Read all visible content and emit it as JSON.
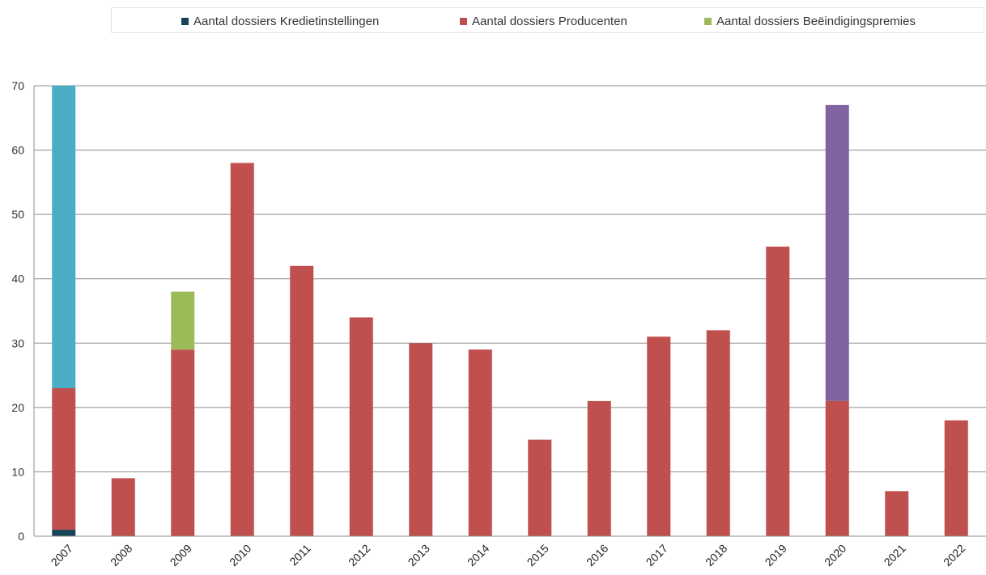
{
  "chart_data": {
    "type": "bar",
    "stacked": true,
    "categories": [
      "2007",
      "2008",
      "2009",
      "2010",
      "2011",
      "2012",
      "2013",
      "2014",
      "2015",
      "2016",
      "2017",
      "2018",
      "2019",
      "2020",
      "2021",
      "2022"
    ],
    "ylim": [
      0,
      70
    ],
    "yticks": [
      0,
      10,
      20,
      30,
      40,
      50,
      60,
      70
    ],
    "grid": true,
    "legend_position": "top",
    "legend": [
      {
        "label": "Aantal dossiers Kredietinstellingen",
        "color": "#17435a"
      },
      {
        "label": "Aantal dossiers Producenten",
        "color": "#c0504d"
      },
      {
        "label": "Aantal dossiers Beëindigingspremies",
        "color": "#9bbb59"
      }
    ],
    "series": [
      {
        "name": "Aantal dossiers Kredietinstellingen",
        "color": "#17435a",
        "values": [
          1,
          0,
          0,
          0,
          0,
          0,
          0,
          0,
          0,
          0,
          0,
          0,
          0,
          0,
          0,
          0
        ]
      },
      {
        "name": "Aantal dossiers Producenten",
        "color": "#c0504d",
        "values": [
          22,
          9,
          29,
          58,
          42,
          34,
          30,
          29,
          15,
          21,
          31,
          32,
          45,
          21,
          7,
          18
        ]
      },
      {
        "name": "Aantal dossiers Beëindigingspremies",
        "color": "#9bbb59",
        "values": [
          0,
          0,
          9,
          0,
          0,
          0,
          0,
          0,
          0,
          0,
          0,
          0,
          0,
          0,
          0,
          0
        ]
      },
      {
        "color": "#4bacc6",
        "values": [
          47,
          0,
          0,
          0,
          0,
          0,
          0,
          0,
          0,
          0,
          0,
          0,
          0,
          0,
          0,
          0
        ]
      },
      {
        "color": "#8064a2",
        "values": [
          0,
          0,
          0,
          0,
          0,
          0,
          0,
          0,
          0,
          0,
          0,
          0,
          0,
          46,
          0,
          0
        ]
      }
    ]
  }
}
